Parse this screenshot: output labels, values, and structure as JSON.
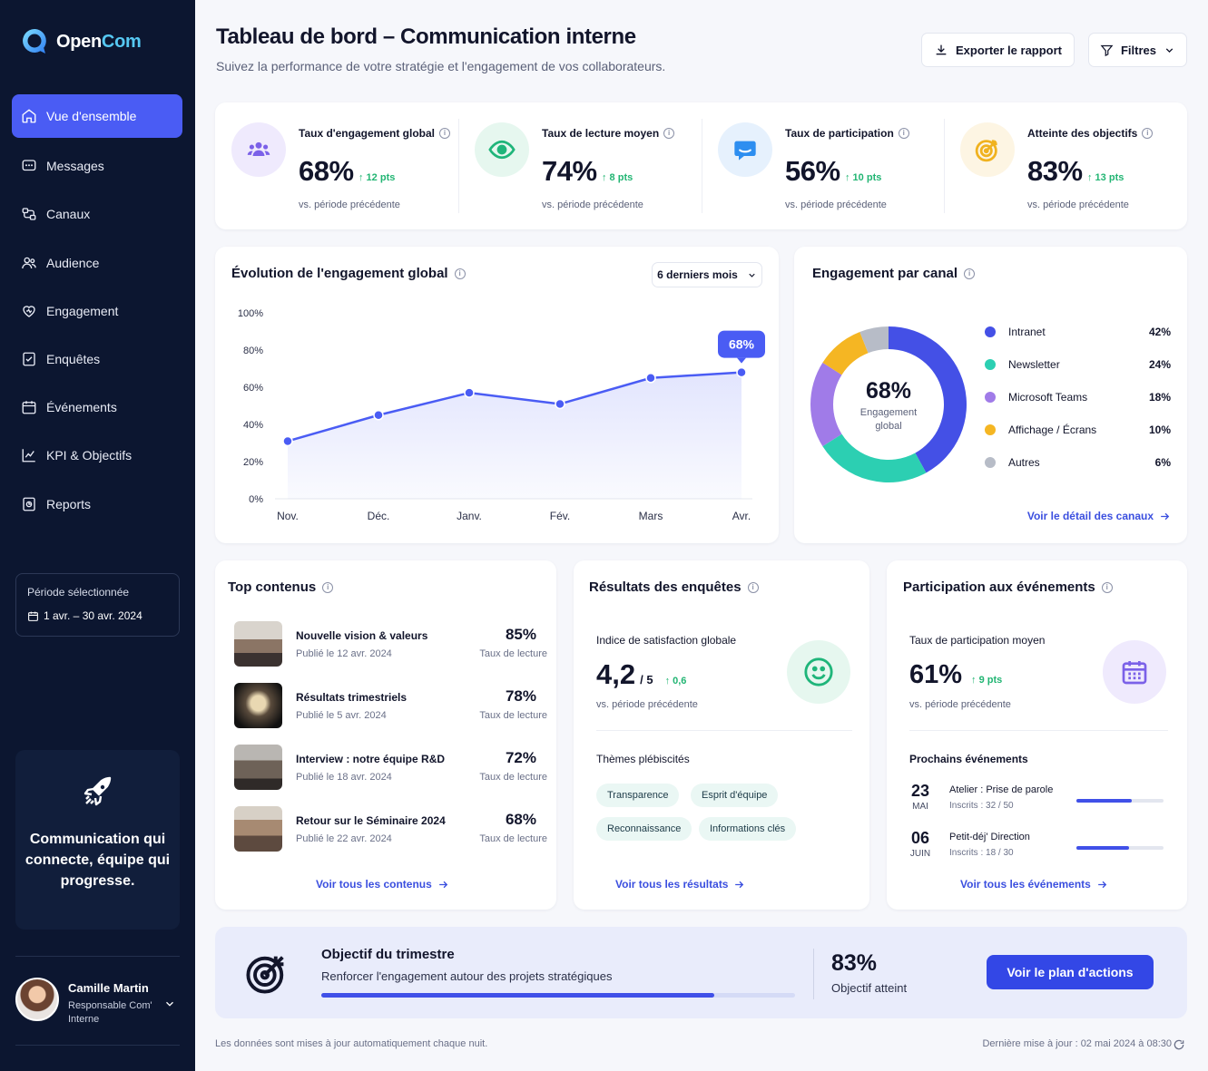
{
  "app": {
    "brand_part1": "Open",
    "brand_part2": "Com"
  },
  "sidebar": {
    "items": [
      {
        "label": "Vue d'ensemble",
        "icon": "home-icon",
        "active": true
      },
      {
        "label": "Messages",
        "icon": "message-icon"
      },
      {
        "label": "Canaux",
        "icon": "channels-icon"
      },
      {
        "label": "Audience",
        "icon": "users-icon"
      },
      {
        "label": "Engagement",
        "icon": "heart-icon"
      },
      {
        "label": "Enquêtes",
        "icon": "survey-icon"
      },
      {
        "label": "Événements",
        "icon": "calendar-icon"
      },
      {
        "label": "KPI & Objectifs",
        "icon": "chart-icon"
      },
      {
        "label": "Reports",
        "icon": "report-icon"
      }
    ],
    "period_label": "Période sélectionnée",
    "period_value": "1 avr. – 30 avr. 2024",
    "promo_text": "Communication qui connecte, équipe qui progresse.",
    "user": {
      "name": "Camille Martin",
      "role": "Responsable Com' Interne"
    }
  },
  "header": {
    "title": "Tableau de bord – Communication interne",
    "subtitle": "Suivez la performance de votre stratégie et l'engagement de vos collaborateurs.",
    "export_label": "Exporter le rapport",
    "filters_label": "Filtres"
  },
  "kpis": [
    {
      "label": "Taux d'engagement global",
      "value": "68%",
      "delta": "↑ 12 pts",
      "compare": "vs. période précédente",
      "icon": "users-icon",
      "color": "#7b61e8",
      "bg": "#efeafd"
    },
    {
      "label": "Taux de lecture moyen",
      "value": "74%",
      "delta": "↑ 8 pts",
      "compare": "vs. période précédente",
      "icon": "eye-icon",
      "color": "#1fb57a",
      "bg": "#e6f7ef"
    },
    {
      "label": "Taux de participation",
      "value": "56%",
      "delta": "↑ 10 pts",
      "compare": "vs. période précédente",
      "icon": "chat-icon",
      "color": "#2d8ef0",
      "bg": "#e6f1fd"
    },
    {
      "label": "Atteinte des objectifs",
      "value": "83%",
      "delta": "↑ 13 pts",
      "compare": "vs. période précédente",
      "icon": "target-icon",
      "color": "#f0b21f",
      "bg": "#fdf5e3"
    }
  ],
  "engagement_chart": {
    "title": "Évolution de l'engagement global",
    "range_label": "6 derniers mois",
    "tooltip": "68%"
  },
  "channels": {
    "title": "Engagement par canal",
    "center_value": "68%",
    "center_label": "Engagement global",
    "link": "Voir le détail des canaux"
  },
  "chart_data": [
    {
      "type": "area",
      "title": "Évolution de l'engagement global",
      "categories": [
        "Nov.",
        "Déc.",
        "Janv.",
        "Fév.",
        "Mars",
        "Avr."
      ],
      "values": [
        31,
        45,
        57,
        51,
        65,
        68
      ],
      "y_ticks": [
        "0%",
        "20%",
        "40%",
        "60%",
        "80%",
        "100%"
      ],
      "ylim": [
        0,
        100
      ],
      "grid": false,
      "color": "#4a5cf4"
    },
    {
      "type": "pie",
      "title": "Engagement par canal",
      "categories": [
        "Intranet",
        "Newsletter",
        "Microsoft Teams",
        "Affichage / Écrans",
        "Autres"
      ],
      "values": [
        42,
        24,
        18,
        10,
        6
      ],
      "labels": [
        "42%",
        "24%",
        "18%",
        "10%",
        "6%"
      ],
      "colors": [
        "#4450e6",
        "#2ccfb2",
        "#a07be8",
        "#f5b623",
        "#b7bcc7"
      ],
      "legend": "right"
    }
  ],
  "top_contents": {
    "title": "Top contenus",
    "items": [
      {
        "title": "Nouvelle vision & valeurs",
        "date": "Publié le 12 avr. 2024",
        "pct": "85%",
        "pct_label": "Taux de lecture"
      },
      {
        "title": "Résultats trimestriels",
        "date": "Publié le 5 avr. 2024",
        "pct": "78%",
        "pct_label": "Taux de lecture"
      },
      {
        "title": "Interview : notre équipe R&D",
        "date": "Publié le 18 avr. 2024",
        "pct": "72%",
        "pct_label": "Taux de lecture"
      },
      {
        "title": "Retour sur le Séminaire 2024",
        "date": "Publié le 22 avr. 2024",
        "pct": "68%",
        "pct_label": "Taux de lecture"
      }
    ],
    "link": "Voir tous les contenus"
  },
  "surveys": {
    "title": "Résultats des enquêtes",
    "index_label": "Indice de satisfaction globale",
    "index_value": "4,2",
    "index_scale": "/ 5",
    "index_delta": "↑ 0,6",
    "compare": "vs. période précédente",
    "themes_label": "Thèmes plébiscités",
    "themes": [
      "Transparence",
      "Esprit d'équipe",
      "Reconnaissance",
      "Informations clés"
    ],
    "link": "Voir tous les résultats"
  },
  "events": {
    "title": "Participation aux événements",
    "rate_label": "Taux de participation moyen",
    "rate_value": "61%",
    "rate_delta": "↑ 9 pts",
    "compare": "vs. période précédente",
    "upcoming_label": "Prochains événements",
    "items": [
      {
        "day": "23",
        "month": "MAI",
        "title": "Atelier : Prise de parole",
        "sub": "Inscrits : 32 / 50",
        "progress": 0.64
      },
      {
        "day": "06",
        "month": "JUIN",
        "title": "Petit-déj' Direction",
        "sub": "Inscrits : 18 / 30",
        "progress": 0.6
      }
    ],
    "link": "Voir tous les événements"
  },
  "objective": {
    "title": "Objectif du trimestre",
    "desc": "Renforcer l'engagement autour des projets stratégiques",
    "value": "83%",
    "value_label": "Objectif atteint",
    "progress": 0.83,
    "button": "Voir le plan d'actions"
  },
  "footer": {
    "left": "Les données sont mises à jour automatiquement chaque nuit.",
    "right": "Dernière mise à jour : 02 mai 2024 à 08:30"
  }
}
